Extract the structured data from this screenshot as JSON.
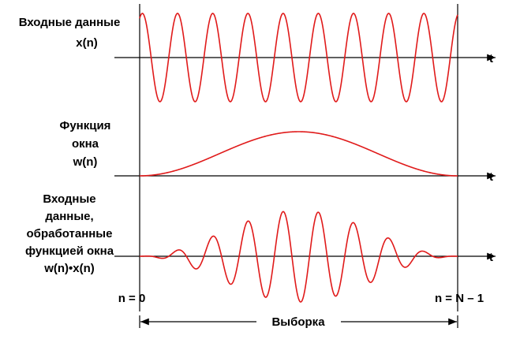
{
  "panels": [
    {
      "label": [
        "Входные данные",
        "x(n)"
      ],
      "axis": "t"
    },
    {
      "label": [
        "Функция",
        "окна",
        "w(n)"
      ],
      "axis": "t"
    },
    {
      "label": [
        "Входные",
        "данные,",
        "обработанные",
        "функцией окна",
        "w(n)•x(n)"
      ],
      "axis": "t"
    }
  ],
  "markers": {
    "start": "n = 0",
    "end": "n = N – 1"
  },
  "span": "Выборка"
}
